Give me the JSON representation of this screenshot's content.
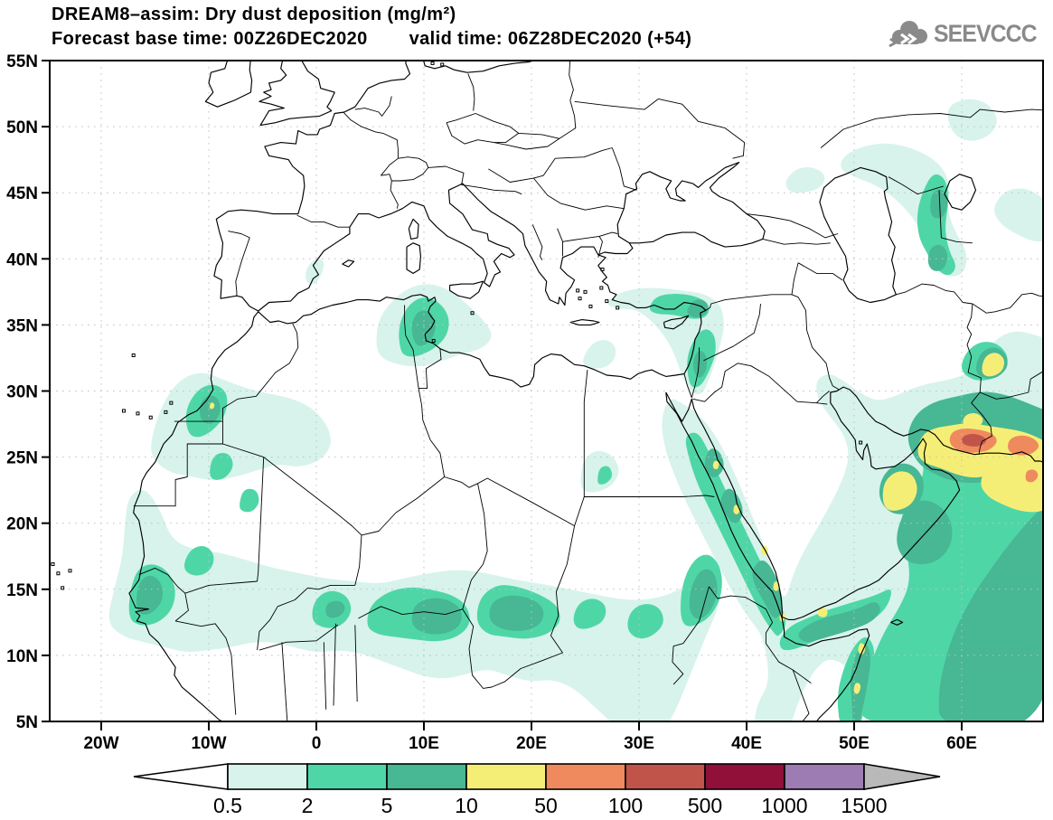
{
  "header": {
    "title": "DREAM8–assim: Dry dust deposition (mg/m²)",
    "forecast_base": "Forecast base time: 00Z26DEC2020",
    "valid_time": "valid time: 06Z28DEC2020 (+54)",
    "logo_text": "SEEVCCC"
  },
  "map": {
    "y_ticks": [
      {
        "label": "55N",
        "lat": 55
      },
      {
        "label": "50N",
        "lat": 50
      },
      {
        "label": "45N",
        "lat": 45
      },
      {
        "label": "40N",
        "lat": 40
      },
      {
        "label": "35N",
        "lat": 35
      },
      {
        "label": "30N",
        "lat": 30
      },
      {
        "label": "25N",
        "lat": 25
      },
      {
        "label": "20N",
        "lat": 20
      },
      {
        "label": "15N",
        "lat": 15
      },
      {
        "label": "10N",
        "lat": 10
      },
      {
        "label": "5N",
        "lat": 5
      }
    ],
    "x_ticks": [
      {
        "label": "20W",
        "lon": -20
      },
      {
        "label": "10W",
        "lon": -10
      },
      {
        "label": "0",
        "lon": 0
      },
      {
        "label": "10E",
        "lon": 10
      },
      {
        "label": "20E",
        "lon": 20
      },
      {
        "label": "30E",
        "lon": 30
      },
      {
        "label": "40E",
        "lon": 40
      },
      {
        "label": "50E",
        "lon": 50
      },
      {
        "label": "60E",
        "lon": 60
      }
    ]
  },
  "legend": {
    "units": "mg/m²",
    "values": [
      "0.5",
      "2",
      "5",
      "10",
      "50",
      "100",
      "500",
      "1000",
      "1500"
    ],
    "segment_colors": [
      "#d7f3ec",
      "#4fd6a7",
      "#47b794",
      "#f5ee76",
      "#ef8a5e",
      "#c0544a",
      "#90103a",
      "#9d7cb3"
    ],
    "under_arrow_color": "#ffffff",
    "over_arrow_color": "#b9b9b9"
  },
  "dust_summary": {
    "type": "filled-contour forecast map",
    "levels_mg_m2": [
      0.5,
      2,
      5,
      10,
      50,
      100,
      500,
      1000,
      1500
    ],
    "features": [
      {
        "area": "Sahel belt 10N-17N from Senegal to Sudan",
        "max_level": "5-10"
      },
      {
        "area": "Southern Morocco / Western Sahara",
        "max_level": "10"
      },
      {
        "area": "Tunisia / Gulf of Gabes",
        "max_level": "5"
      },
      {
        "area": "Levant and Cyprus - southern Turkey coast",
        "max_level": "5"
      },
      {
        "area": "Red Sea coasts",
        "max_level": "10-50"
      },
      {
        "area": "Gulf of Aden and Somali coast",
        "max_level": "10-50"
      },
      {
        "area": "Arabian Sea / Gulf of Oman",
        "max_level": "50"
      },
      {
        "area": "Makran coast Iran-Pakistan",
        "max_level": "100-500"
      },
      {
        "area": "SE Afghanistan",
        "max_level": "10-50"
      },
      {
        "area": "East of Caspian Sea",
        "max_level": "5"
      }
    ]
  }
}
